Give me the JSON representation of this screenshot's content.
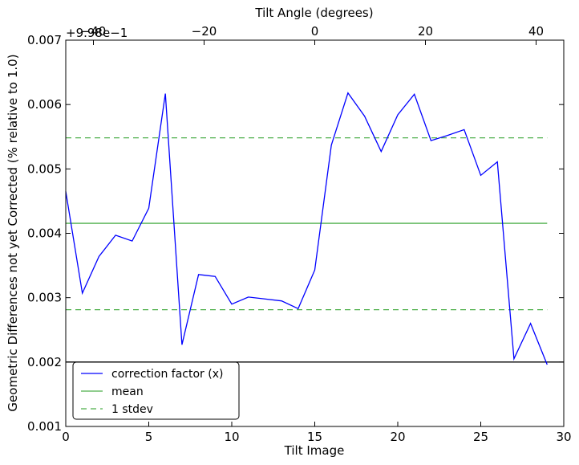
{
  "chart_data": {
    "type": "line",
    "title": "",
    "xlabel": "Tilt Image",
    "ylabel": "Geometric Differences not yet Corrected (% relative to 1.0)",
    "top_xlabel": "Tilt Angle (degrees)",
    "y_offset_label": "+9.98e−1",
    "xlim": [
      0,
      30
    ],
    "ylim": [
      0.001,
      0.007
    ],
    "x_ticks": [
      0,
      5,
      10,
      15,
      20,
      25,
      30
    ],
    "y_ticks": [
      0.001,
      0.002,
      0.003,
      0.004,
      0.005,
      0.006,
      0.007
    ],
    "y_tick_labels": [
      "0.001",
      "0.002",
      "0.003",
      "0.004",
      "0.005",
      "0.006",
      "0.007"
    ],
    "top_xlim": [
      -45,
      45
    ],
    "top_ticks": [
      -40,
      -20,
      0,
      20,
      40
    ],
    "top_tick_labels": [
      "−40",
      "−20",
      "0",
      "20",
      "40"
    ],
    "grid": false,
    "legend_position": "lower-left",
    "series": [
      {
        "name": "correction factor (x)",
        "color": "#0000ff",
        "style": "solid",
        "x": [
          0,
          1,
          2,
          3,
          4,
          5,
          6,
          7,
          8,
          9,
          10,
          11,
          12,
          13,
          14,
          15,
          16,
          17,
          18,
          19,
          20,
          21,
          22,
          23,
          24,
          25,
          26,
          27,
          28,
          29
        ],
        "values": [
          0.00465,
          0.00307,
          0.00364,
          0.00397,
          0.00388,
          0.00439,
          0.00617,
          0.00227,
          0.00336,
          0.00333,
          0.0029,
          0.00301,
          0.00298,
          0.00295,
          0.00283,
          0.00343,
          0.00537,
          0.00618,
          0.00582,
          0.00527,
          0.00584,
          0.00616,
          0.00544,
          0.00552,
          0.00561,
          0.0049,
          0.00511,
          0.00205,
          0.0026,
          0.00196
        ]
      },
      {
        "name": "mean",
        "color": "#4daf4a",
        "style": "solid",
        "x": [
          0,
          29
        ],
        "values": [
          0.004155,
          0.004155
        ]
      },
      {
        "name": "1 stdev",
        "color": "#4daf4a",
        "style": "dashed",
        "x": [
          0,
          29
        ],
        "values": [
          0.005483,
          0.005483
        ]
      },
      {
        "name": "",
        "color": "#4daf4a",
        "style": "dashed",
        "x": [
          0,
          29
        ],
        "values": [
          0.002813,
          0.002813
        ]
      }
    ],
    "reference_line": {
      "y": 0.002,
      "color": "#000000"
    },
    "legend": [
      {
        "label": "correction factor (x)",
        "color": "#0000ff",
        "style": "solid"
      },
      {
        "label": "mean",
        "color": "#4daf4a",
        "style": "solid"
      },
      {
        "label": "1 stdev",
        "color": "#4daf4a",
        "style": "dashed"
      }
    ]
  }
}
